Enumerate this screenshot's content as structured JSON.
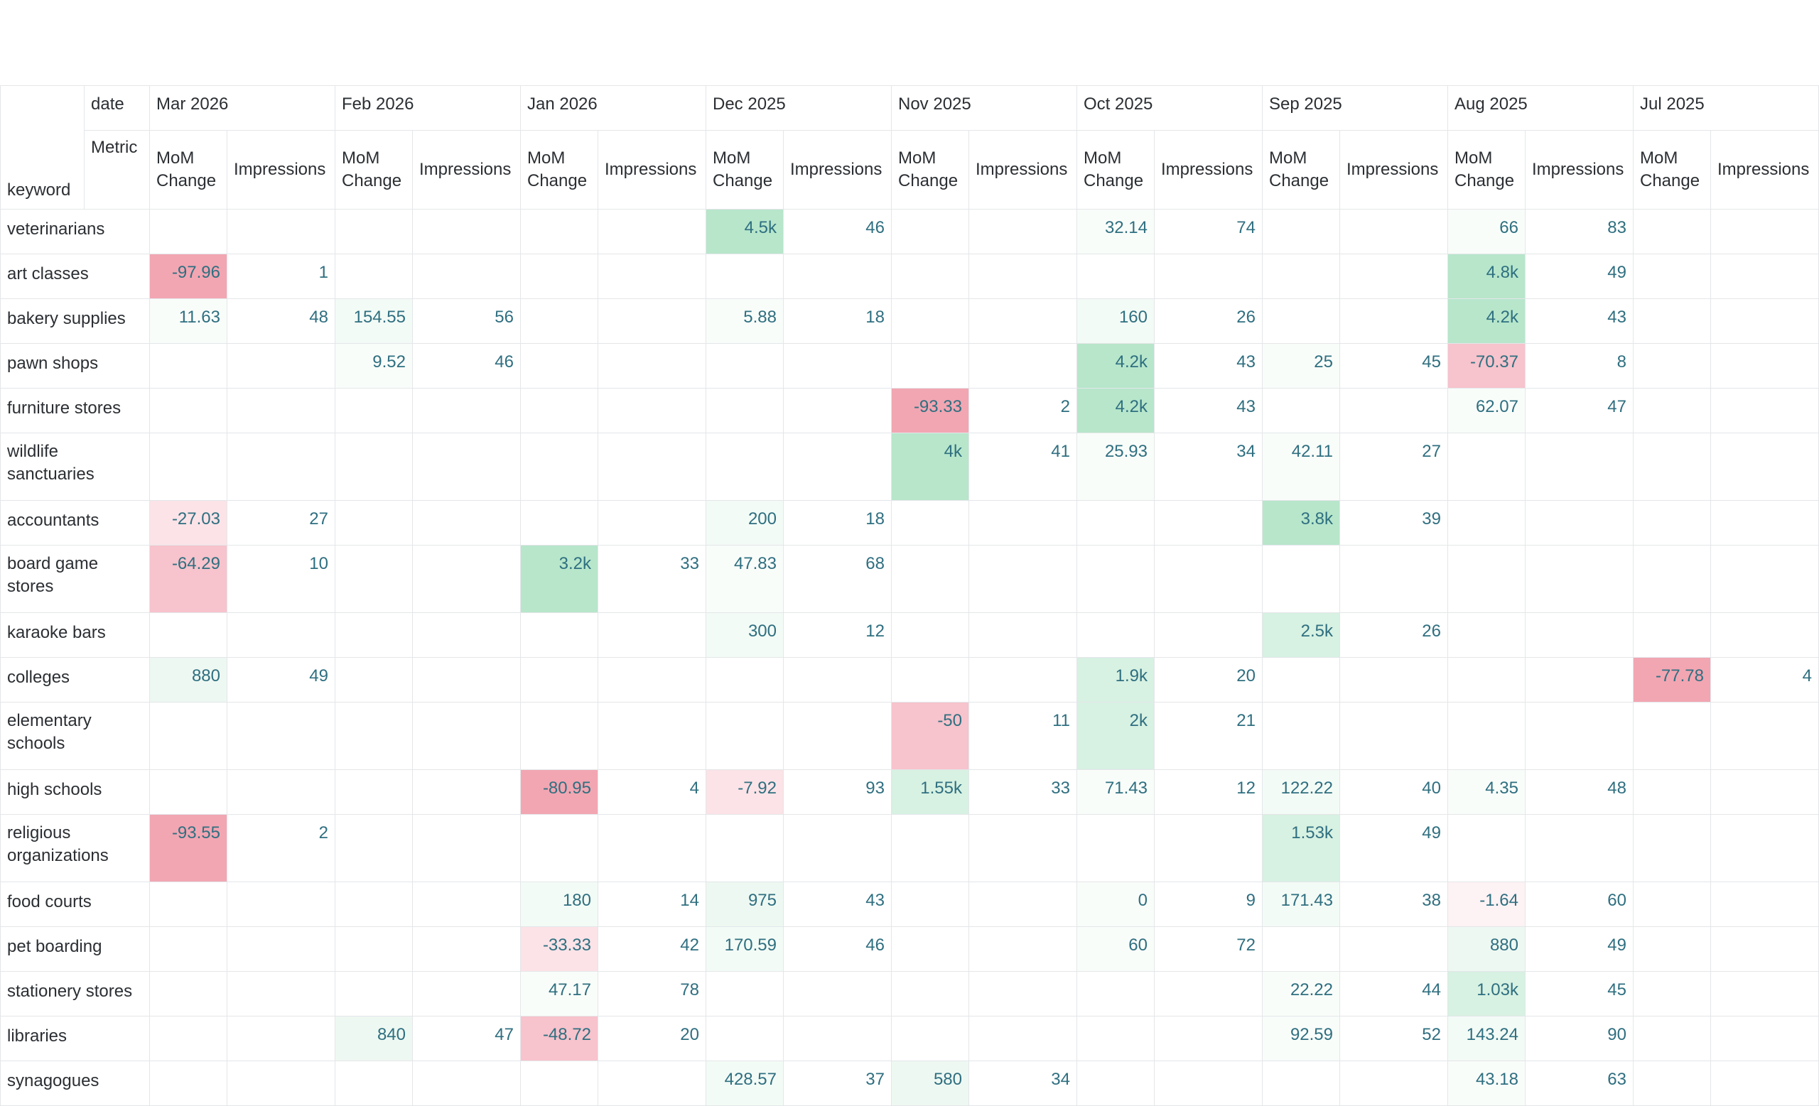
{
  "header": {
    "date_label": "date",
    "metric_label": "Metric",
    "keyword_label": "keyword",
    "months": [
      "Mar 2026",
      "Feb 2026",
      "Jan 2026",
      "Dec 2025",
      "Nov 2025",
      "Oct 2025",
      "Sep 2025",
      "Aug 2025",
      "Jul 2025"
    ],
    "metrics": [
      "MoM Change",
      "Impressions"
    ]
  },
  "colors": {
    "positive_strong": "#b7e6cb",
    "positive_mid": "#d7f1e2",
    "positive_light": "#eef8f2",
    "negative_strong": "#f2a6b2",
    "negative_mid": "#f7c3cc",
    "negative_light": "#fbe3e7",
    "text_value": "#2f6f80"
  },
  "rows": [
    {
      "keyword": "veterinarians",
      "cells": [
        [
          "",
          ""
        ],
        [
          "",
          ""
        ],
        [
          "",
          ""
        ],
        [
          "4.5k",
          "46"
        ],
        [
          "",
          ""
        ],
        [
          "32.14",
          "74"
        ],
        [
          "",
          ""
        ],
        [
          "66",
          "83"
        ],
        [
          "",
          ""
        ]
      ]
    },
    {
      "keyword": "art classes",
      "cells": [
        [
          "-97.96",
          "1"
        ],
        [
          "",
          ""
        ],
        [
          "",
          ""
        ],
        [
          "",
          ""
        ],
        [
          "",
          ""
        ],
        [
          "",
          ""
        ],
        [
          "",
          ""
        ],
        [
          "4.8k",
          "49"
        ],
        [
          "",
          ""
        ]
      ]
    },
    {
      "keyword": "bakery supplies",
      "cells": [
        [
          "11.63",
          "48"
        ],
        [
          "154.55",
          "56"
        ],
        [
          "",
          ""
        ],
        [
          "5.88",
          "18"
        ],
        [
          "",
          ""
        ],
        [
          "160",
          "26"
        ],
        [
          "",
          ""
        ],
        [
          "4.2k",
          "43"
        ],
        [
          "",
          ""
        ]
      ]
    },
    {
      "keyword": "pawn shops",
      "cells": [
        [
          "",
          ""
        ],
        [
          "9.52",
          "46"
        ],
        [
          "",
          ""
        ],
        [
          "",
          ""
        ],
        [
          "",
          ""
        ],
        [
          "4.2k",
          "43"
        ],
        [
          "25",
          "45"
        ],
        [
          "-70.37",
          "8"
        ],
        [
          "",
          ""
        ]
      ]
    },
    {
      "keyword": "furniture stores",
      "cells": [
        [
          "",
          ""
        ],
        [
          "",
          ""
        ],
        [
          "",
          ""
        ],
        [
          "",
          ""
        ],
        [
          "-93.33",
          "2"
        ],
        [
          "4.2k",
          "43"
        ],
        [
          "",
          ""
        ],
        [
          "62.07",
          "47"
        ],
        [
          "",
          ""
        ]
      ]
    },
    {
      "keyword": "wildlife sanctuaries",
      "cells": [
        [
          "",
          ""
        ],
        [
          "",
          ""
        ],
        [
          "",
          ""
        ],
        [
          "",
          ""
        ],
        [
          "4k",
          "41"
        ],
        [
          "25.93",
          "34"
        ],
        [
          "42.11",
          "27"
        ],
        [
          "",
          ""
        ],
        [
          "",
          ""
        ]
      ]
    },
    {
      "keyword": "accountants",
      "cells": [
        [
          "-27.03",
          "27"
        ],
        [
          "",
          ""
        ],
        [
          "",
          ""
        ],
        [
          "200",
          "18"
        ],
        [
          "",
          ""
        ],
        [
          "",
          ""
        ],
        [
          "3.8k",
          "39"
        ],
        [
          "",
          ""
        ],
        [
          "",
          ""
        ]
      ]
    },
    {
      "keyword": "board game stores",
      "cells": [
        [
          "-64.29",
          "10"
        ],
        [
          "",
          ""
        ],
        [
          "3.2k",
          "33"
        ],
        [
          "47.83",
          "68"
        ],
        [
          "",
          ""
        ],
        [
          "",
          ""
        ],
        [
          "",
          ""
        ],
        [
          "",
          ""
        ],
        [
          "",
          ""
        ]
      ]
    },
    {
      "keyword": "karaoke bars",
      "cells": [
        [
          "",
          ""
        ],
        [
          "",
          ""
        ],
        [
          "",
          ""
        ],
        [
          "300",
          "12"
        ],
        [
          "",
          ""
        ],
        [
          "",
          ""
        ],
        [
          "2.5k",
          "26"
        ],
        [
          "",
          ""
        ],
        [
          "",
          ""
        ]
      ]
    },
    {
      "keyword": "colleges",
      "cells": [
        [
          "880",
          "49"
        ],
        [
          "",
          ""
        ],
        [
          "",
          ""
        ],
        [
          "",
          ""
        ],
        [
          "",
          ""
        ],
        [
          "1.9k",
          "20"
        ],
        [
          "",
          ""
        ],
        [
          "",
          ""
        ],
        [
          "-77.78",
          "4"
        ]
      ]
    },
    {
      "keyword": "elementary schools",
      "cells": [
        [
          "",
          ""
        ],
        [
          "",
          ""
        ],
        [
          "",
          ""
        ],
        [
          "",
          ""
        ],
        [
          "-50",
          "11"
        ],
        [
          "2k",
          "21"
        ],
        [
          "",
          ""
        ],
        [
          "",
          ""
        ],
        [
          "",
          ""
        ]
      ]
    },
    {
      "keyword": "high schools",
      "cells": [
        [
          "",
          ""
        ],
        [
          "",
          ""
        ],
        [
          "-80.95",
          "4"
        ],
        [
          "-7.92",
          "93"
        ],
        [
          "1.55k",
          "33"
        ],
        [
          "71.43",
          "12"
        ],
        [
          "122.22",
          "40"
        ],
        [
          "4.35",
          "48"
        ],
        [
          "",
          ""
        ]
      ]
    },
    {
      "keyword": "religious organizations",
      "cells": [
        [
          "-93.55",
          "2"
        ],
        [
          "",
          ""
        ],
        [
          "",
          ""
        ],
        [
          "",
          ""
        ],
        [
          "",
          ""
        ],
        [
          "",
          ""
        ],
        [
          "1.53k",
          "49"
        ],
        [
          "",
          ""
        ],
        [
          "",
          ""
        ]
      ]
    },
    {
      "keyword": "food courts",
      "cells": [
        [
          "",
          ""
        ],
        [
          "",
          ""
        ],
        [
          "180",
          "14"
        ],
        [
          "975",
          "43"
        ],
        [
          "",
          ""
        ],
        [
          "0",
          "9"
        ],
        [
          "171.43",
          "38"
        ],
        [
          "-1.64",
          "60"
        ],
        [
          "",
          ""
        ]
      ]
    },
    {
      "keyword": "pet boarding",
      "cells": [
        [
          "",
          ""
        ],
        [
          "",
          ""
        ],
        [
          "-33.33",
          "42"
        ],
        [
          "170.59",
          "46"
        ],
        [
          "",
          ""
        ],
        [
          "60",
          "72"
        ],
        [
          "",
          ""
        ],
        [
          "880",
          "49"
        ],
        [
          "",
          ""
        ]
      ]
    },
    {
      "keyword": "stationery stores",
      "cells": [
        [
          "",
          ""
        ],
        [
          "",
          ""
        ],
        [
          "47.17",
          "78"
        ],
        [
          "",
          ""
        ],
        [
          "",
          ""
        ],
        [
          "",
          ""
        ],
        [
          "22.22",
          "44"
        ],
        [
          "1.03k",
          "45"
        ],
        [
          "",
          ""
        ]
      ]
    },
    {
      "keyword": "libraries",
      "cells": [
        [
          "",
          ""
        ],
        [
          "840",
          "47"
        ],
        [
          "-48.72",
          "20"
        ],
        [
          "",
          ""
        ],
        [
          "",
          ""
        ],
        [
          "",
          ""
        ],
        [
          "92.59",
          "52"
        ],
        [
          "143.24",
          "90"
        ],
        [
          "",
          ""
        ]
      ]
    },
    {
      "keyword": "synagogues",
      "cells": [
        [
          "",
          ""
        ],
        [
          "",
          ""
        ],
        [
          "",
          ""
        ],
        [
          "428.57",
          "37"
        ],
        [
          "580",
          "34"
        ],
        [
          "",
          ""
        ],
        [
          "",
          ""
        ],
        [
          "43.18",
          "63"
        ],
        [
          "",
          ""
        ]
      ]
    }
  ]
}
